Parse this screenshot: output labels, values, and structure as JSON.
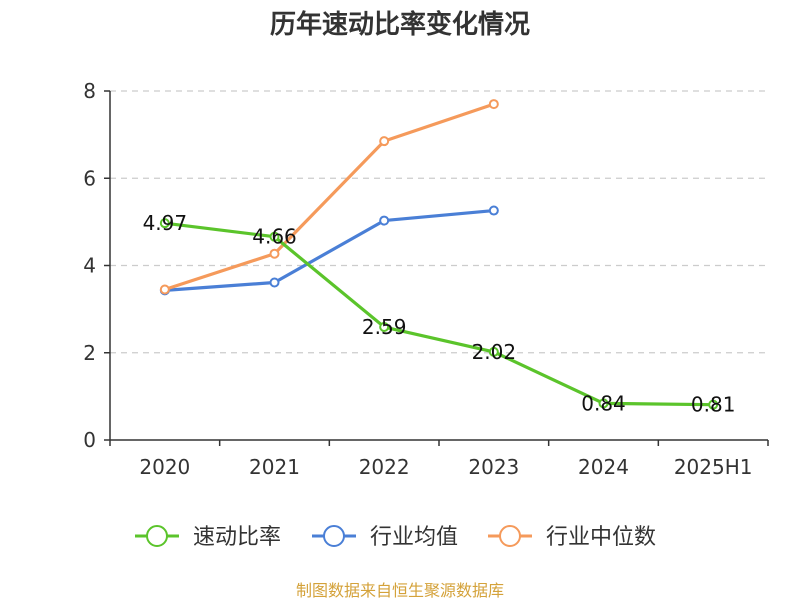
{
  "chart_data": {
    "type": "line",
    "title": "历年速动比率变化情况",
    "categories": [
      "2020",
      "2021",
      "2022",
      "2023",
      "2024",
      "2025H1"
    ],
    "yticks": [
      "0",
      "2",
      "4",
      "6",
      "8"
    ],
    "ylim": [
      0,
      8
    ],
    "grid": true,
    "legend_placement": "bottom",
    "series": [
      {
        "name": "速动比率",
        "color": "#5bc42b",
        "values": [
          4.97,
          4.66,
          2.59,
          2.02,
          0.84,
          0.81
        ],
        "labels": [
          "4.97",
          "4.66",
          "2.59",
          "2.02",
          "0.84",
          "0.81"
        ]
      },
      {
        "name": "行业均值",
        "color": "#4a7fd6",
        "values": [
          3.43,
          3.61,
          5.03,
          5.26,
          null,
          null
        ]
      },
      {
        "name": "行业中位数",
        "color": "#f59a5b",
        "values": [
          3.45,
          4.27,
          6.85,
          7.7,
          null,
          null
        ]
      }
    ],
    "source": "制图数据来自恒生聚源数据库"
  }
}
